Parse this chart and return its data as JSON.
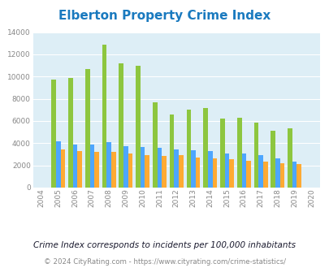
{
  "title": "Elberton Property Crime Index",
  "years": [
    2004,
    2005,
    2006,
    2007,
    2008,
    2009,
    2010,
    2011,
    2012,
    2013,
    2014,
    2015,
    2016,
    2017,
    2018,
    2019,
    2020
  ],
  "elberton": [
    null,
    9750,
    9850,
    10700,
    12900,
    11200,
    10950,
    7700,
    6550,
    7000,
    7200,
    6200,
    6300,
    5850,
    5150,
    5350,
    null
  ],
  "georgia": [
    null,
    4150,
    3900,
    3900,
    4100,
    3750,
    3650,
    3600,
    3450,
    3400,
    3300,
    3100,
    3050,
    2900,
    2600,
    2350,
    null
  ],
  "national": [
    null,
    3450,
    3300,
    3250,
    3250,
    3050,
    2950,
    2850,
    2900,
    2700,
    2600,
    2550,
    2450,
    2350,
    2200,
    2100,
    null
  ],
  "elberton_color": "#8dc63f",
  "georgia_color": "#4da6ff",
  "national_color": "#ffaa33",
  "bg_color": "#ddeef6",
  "ylim": [
    0,
    14000
  ],
  "yticks": [
    0,
    2000,
    4000,
    6000,
    8000,
    10000,
    12000,
    14000
  ],
  "subtitle": "Crime Index corresponds to incidents per 100,000 inhabitants",
  "footer": "© 2024 CityRating.com - https://www.cityrating.com/crime-statistics/",
  "title_color": "#1a7abf",
  "subtitle_color": "#1a1a2e",
  "footer_color": "#888888",
  "footer_link_color": "#4da6ff"
}
